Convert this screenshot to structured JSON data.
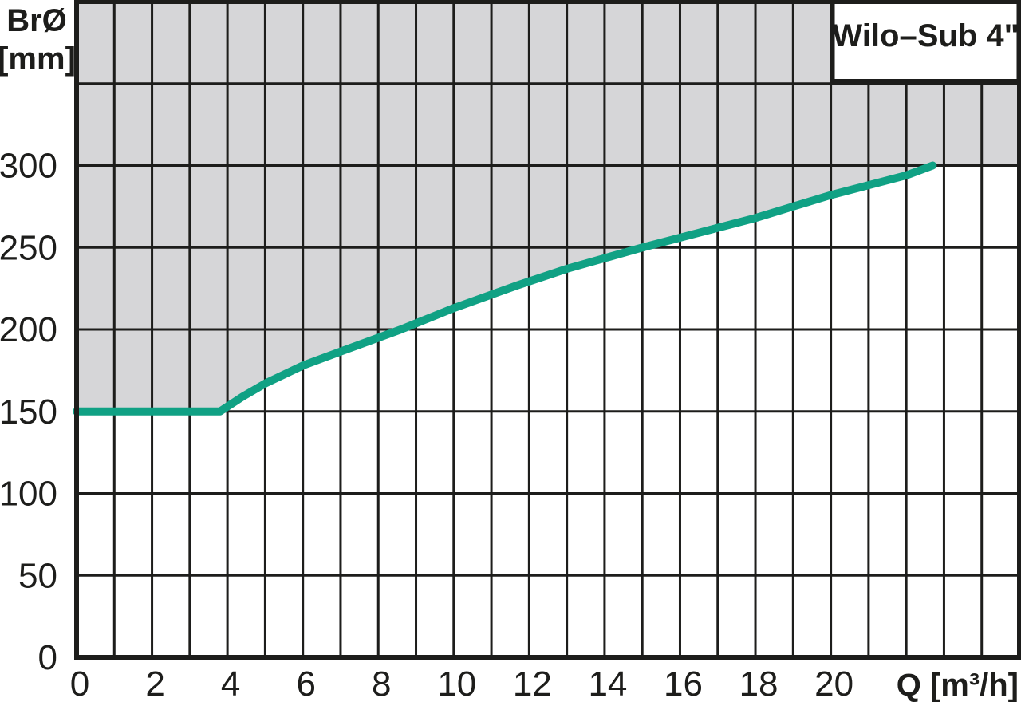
{
  "title_box": {
    "label": "Wilo–Sub 4\""
  },
  "axes": {
    "y_label_line1": "BrØ",
    "y_label_line2": "[mm]",
    "x_label": "Q [m³/h]"
  },
  "chart_data": {
    "type": "area",
    "title": "Wilo–Sub 4\"",
    "xlabel": "Q [m³/h]",
    "ylabel": "BrØ [mm]",
    "xlim": [
      0,
      25
    ],
    "ylim": [
      0,
      400
    ],
    "grid": "on",
    "x_gridline_step": 1,
    "y_gridline_step": 50,
    "x_tick_labels": [
      "0",
      "2",
      "4",
      "6",
      "8",
      "10",
      "12",
      "14",
      "16",
      "18",
      "20"
    ],
    "x_tick_values": [
      0,
      2,
      4,
      6,
      8,
      10,
      12,
      14,
      16,
      18,
      20
    ],
    "y_tick_labels": [
      "0",
      "50",
      "100",
      "150",
      "200",
      "250",
      "300"
    ],
    "y_tick_values": [
      0,
      50,
      100,
      150,
      200,
      250,
      300
    ],
    "series": [
      {
        "name": "minimum-borehole-diameter-curve",
        "points": [
          [
            0,
            150
          ],
          [
            3.8,
            150
          ],
          [
            4.4,
            159
          ],
          [
            5,
            167
          ],
          [
            6,
            178
          ],
          [
            7,
            186.5
          ],
          [
            8.6,
            200
          ],
          [
            10,
            213
          ],
          [
            11.7,
            227
          ],
          [
            13,
            237
          ],
          [
            15,
            250
          ],
          [
            16.5,
            259
          ],
          [
            18,
            268
          ],
          [
            19,
            275
          ],
          [
            20,
            282
          ],
          [
            21,
            288
          ],
          [
            22,
            294
          ],
          [
            22.7,
            300
          ]
        ]
      }
    ],
    "shaded_region": "area above curve, continuing above 300 mm beyond curve end",
    "colors": {
      "curve": "#10a184",
      "fill_above_curve": "#d6d6d8",
      "grid": "#1d1d1b",
      "ink": "#1d1d1b",
      "background": "#ffffff",
      "title_box_fill": "#ffffff"
    }
  }
}
